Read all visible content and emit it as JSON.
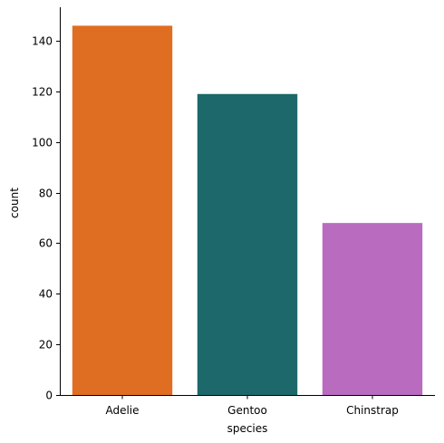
{
  "chart_data": {
    "type": "bar",
    "categories": [
      "Adelie",
      "Gentoo",
      "Chinstrap"
    ],
    "values": [
      146,
      119,
      68
    ],
    "colors": [
      "#e06e22",
      "#1c686b",
      "#b86bbf"
    ],
    "title": "",
    "xlabel": "species",
    "ylabel": "count",
    "ylim": [
      0,
      153.3
    ],
    "yticks": [
      0,
      20,
      40,
      60,
      80,
      100,
      120,
      140
    ],
    "ytick_labels": [
      "0",
      "20",
      "40",
      "60",
      "80",
      "100",
      "120",
      "140"
    ],
    "grid": false,
    "legend": false
  }
}
